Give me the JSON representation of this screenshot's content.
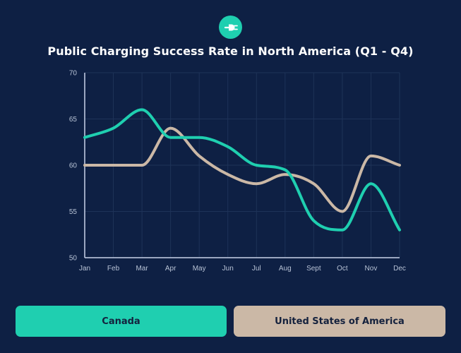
{
  "colors": {
    "background": "#0e2044",
    "canada": "#1fcfb0",
    "usa": "#cbb8a6",
    "grid": "#1e3358",
    "axis": "#c8d2ea"
  },
  "header": {
    "logo_icon": "ev-plug-icon"
  },
  "chart_data": {
    "type": "line",
    "title": "Public Charging Success Rate in North America (Q1 - Q4)",
    "xlabel": "",
    "ylabel": "",
    "categories": [
      "Jan",
      "Feb",
      "Mar",
      "Apr",
      "May",
      "Jun",
      "Jul",
      "Aug",
      "Sept",
      "Oct",
      "Nov",
      "Dec"
    ],
    "ylim": [
      50,
      70
    ],
    "yticks": [
      50,
      55,
      60,
      65,
      70
    ],
    "grid": true,
    "legend": "bottom",
    "series": [
      {
        "name": "Canada",
        "color": "#1fcfb0",
        "values": [
          63,
          64,
          66,
          63,
          63,
          62,
          60,
          59.5,
          54,
          53,
          58,
          53
        ]
      },
      {
        "name": "United States of America",
        "color": "#cbb8a6",
        "values": [
          60,
          60,
          60,
          64,
          61,
          59,
          58,
          59,
          58,
          55,
          61,
          60
        ]
      }
    ]
  }
}
